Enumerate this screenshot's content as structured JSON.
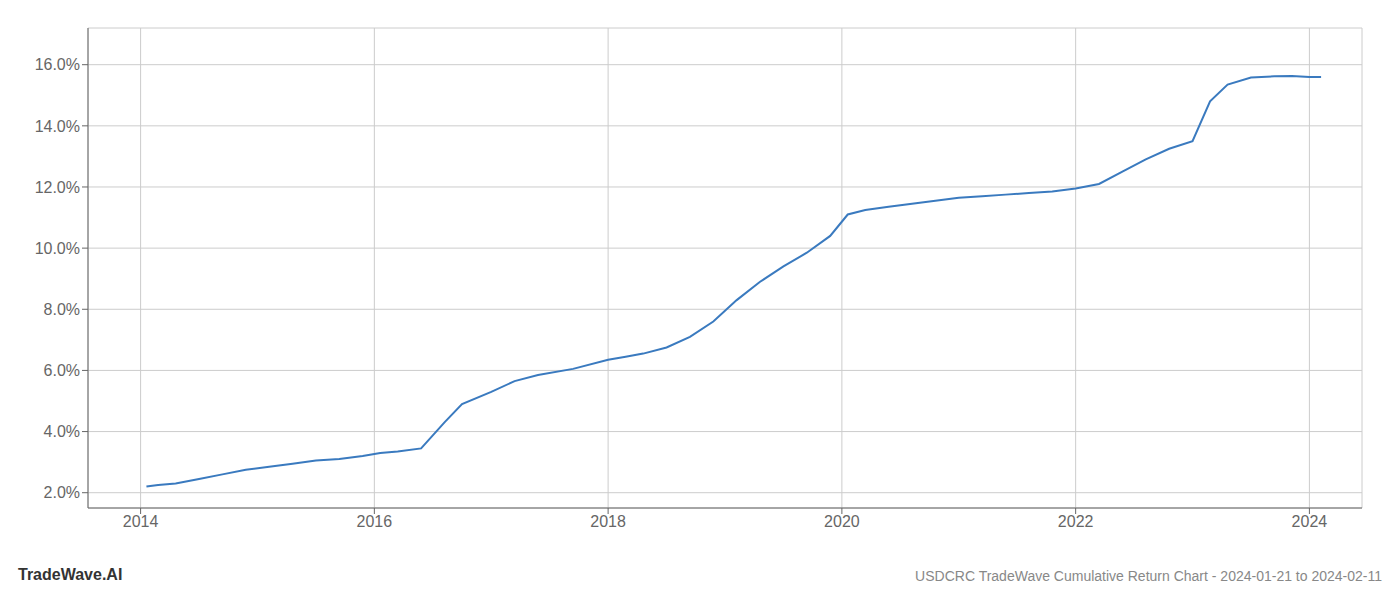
{
  "chart_data": {
    "type": "line",
    "annotations": [
      "TradeWave.AI",
      "USDCRC TradeWave Cumulative Return Chart - 2024-01-21 to 2024-02-11"
    ],
    "x": [
      2014.05,
      2014.15,
      2014.3,
      2014.5,
      2014.7,
      2014.9,
      2015.1,
      2015.3,
      2015.5,
      2015.7,
      2015.9,
      2016.05,
      2016.2,
      2016.4,
      2016.6,
      2016.75,
      2017.0,
      2017.2,
      2017.4,
      2017.7,
      2018.0,
      2018.15,
      2018.3,
      2018.5,
      2018.7,
      2018.9,
      2019.1,
      2019.3,
      2019.5,
      2019.7,
      2019.9,
      2020.05,
      2020.2,
      2020.4,
      2020.6,
      2020.8,
      2021.0,
      2021.2,
      2021.4,
      2021.6,
      2021.8,
      2022.0,
      2022.2,
      2022.4,
      2022.6,
      2022.8,
      2023.0,
      2023.15,
      2023.3,
      2023.5,
      2023.7,
      2023.85,
      2024.0,
      2024.1
    ],
    "values": [
      2.2,
      2.25,
      2.3,
      2.45,
      2.6,
      2.75,
      2.85,
      2.95,
      3.05,
      3.1,
      3.2,
      3.3,
      3.35,
      3.45,
      4.3,
      4.9,
      5.3,
      5.65,
      5.85,
      6.05,
      6.35,
      6.45,
      6.55,
      6.75,
      7.1,
      7.6,
      8.3,
      8.9,
      9.4,
      9.85,
      10.4,
      11.1,
      11.25,
      11.35,
      11.45,
      11.55,
      11.65,
      11.7,
      11.75,
      11.8,
      11.85,
      11.95,
      12.1,
      12.5,
      12.9,
      13.25,
      13.5,
      14.8,
      15.35,
      15.58,
      15.62,
      15.63,
      15.6,
      15.6
    ],
    "color": "#3a7abf",
    "xlim": [
      2013.55,
      2024.45
    ],
    "xticks": [
      2014,
      2016,
      2018,
      2020,
      2022,
      2024
    ],
    "ylim": [
      1.5,
      17.2
    ],
    "yticks": [
      {
        "value": 2.0,
        "label": "2.0%"
      },
      {
        "value": 4.0,
        "label": "4.0%"
      },
      {
        "value": 6.0,
        "label": "6.0%"
      },
      {
        "value": 8.0,
        "label": "8.0%"
      },
      {
        "value": 10.0,
        "label": "10.0%"
      },
      {
        "value": 12.0,
        "label": "12.0%"
      },
      {
        "value": 14.0,
        "label": "14.0%"
      },
      {
        "value": 16.0,
        "label": "16.0%"
      }
    ],
    "grid": true
  }
}
